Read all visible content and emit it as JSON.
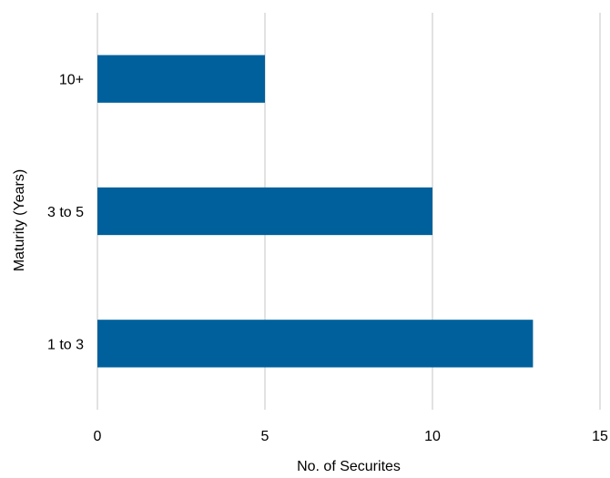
{
  "chart_data": {
    "type": "bar",
    "orientation": "horizontal",
    "categories": [
      "1 to 3",
      "3 to 5",
      "10+"
    ],
    "values": [
      13,
      10,
      5
    ],
    "xlabel": "No. of Securites",
    "ylabel": "Maturity (Years)",
    "xlim": [
      0,
      15
    ],
    "xticks": [
      0,
      5,
      10,
      15
    ],
    "grid": "vertical",
    "legend": "none",
    "bar_color": "#00609c",
    "grid_color": "#d3d3d3"
  }
}
